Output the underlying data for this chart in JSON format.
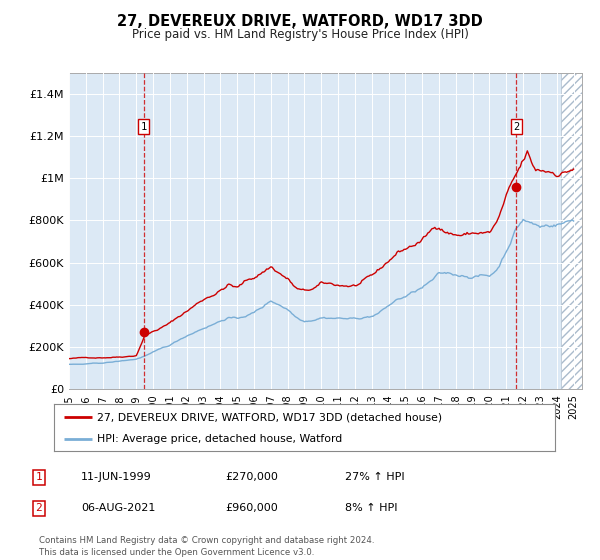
{
  "title": "27, DEVEREUX DRIVE, WATFORD, WD17 3DD",
  "subtitle": "Price paid vs. HM Land Registry's House Price Index (HPI)",
  "bg_color": "#dce9f5",
  "red_color": "#cc0000",
  "blue_color": "#7aaed6",
  "ylim": [
    0,
    1500000
  ],
  "yticks": [
    0,
    200000,
    400000,
    600000,
    800000,
    1000000,
    1200000,
    1400000
  ],
  "ytick_labels": [
    "£0",
    "£200K",
    "£400K",
    "£600K",
    "£800K",
    "£1M",
    "£1.2M",
    "£1.4M"
  ],
  "legend_line1": "27, DEVEREUX DRIVE, WATFORD, WD17 3DD (detached house)",
  "legend_line2": "HPI: Average price, detached house, Watford",
  "annotation1_date": "11-JUN-1999",
  "annotation1_price": "£270,000",
  "annotation1_hpi": "27% ↑ HPI",
  "annotation2_date": "06-AUG-2021",
  "annotation2_price": "£960,000",
  "annotation2_hpi": "8% ↑ HPI",
  "footer": "Contains HM Land Registry data © Crown copyright and database right 2024.\nThis data is licensed under the Open Government Licence v3.0.",
  "marker1_x": 1999.44,
  "marker1_y": 270000,
  "marker2_x": 2021.59,
  "marker2_y": 960000,
  "xmin": 1995.0,
  "xmax": 2025.5,
  "hatch_start": 2024.25
}
